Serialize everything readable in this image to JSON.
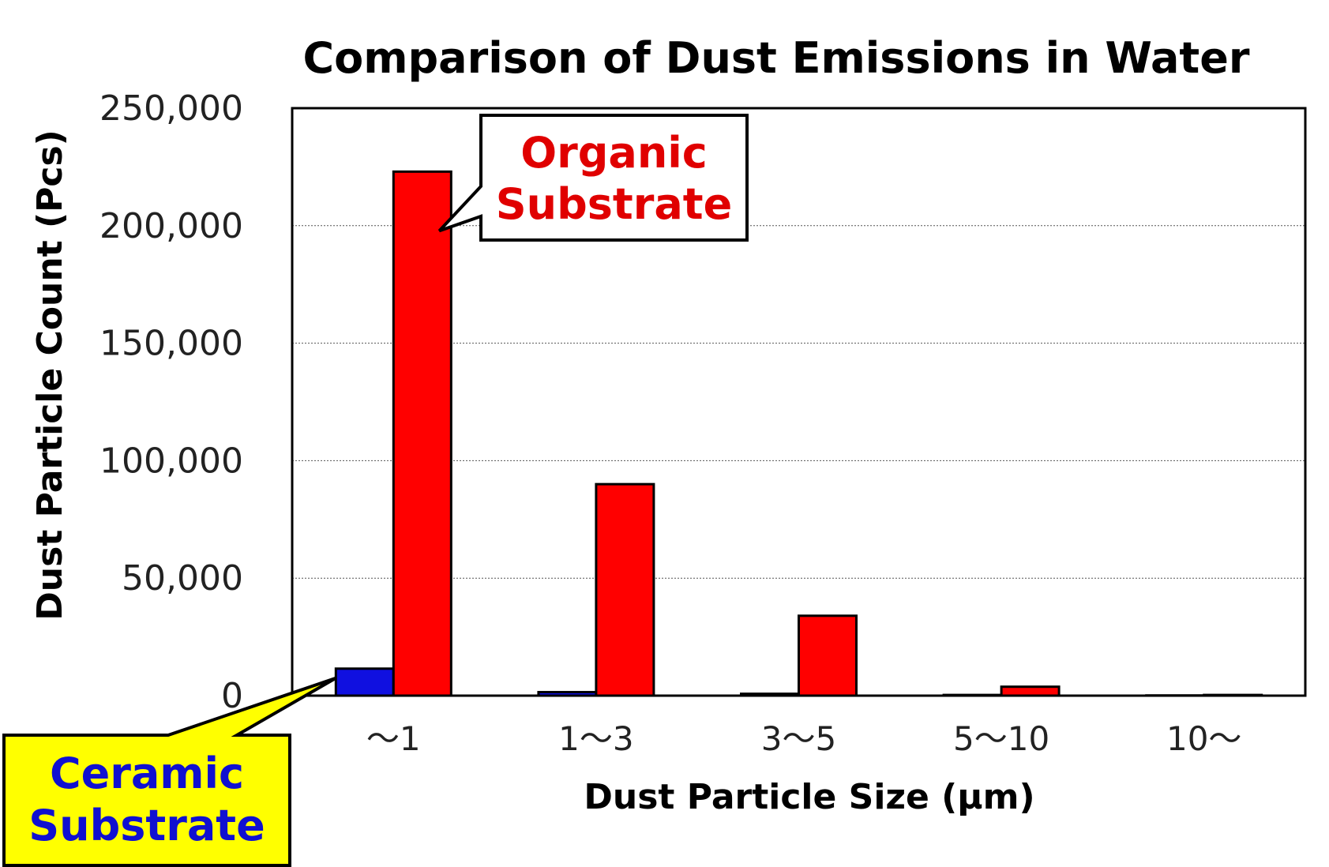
{
  "chart_data": {
    "type": "bar",
    "title": "Comparison of Dust Emissions in Water",
    "xlabel": "Dust Particle Size (μm)",
    "ylabel": "Dust Particle Count (Pcs)",
    "categories": [
      "～1",
      "1～3",
      "3～5",
      "5～10",
      "10～"
    ],
    "series": [
      {
        "name": "Ceramic Substrate",
        "color": "#1010e0",
        "values": [
          11500,
          1500,
          800,
          300,
          100
        ]
      },
      {
        "name": "Organic Substrate",
        "color": "#ff0000",
        "values": [
          223000,
          90000,
          34000,
          3800,
          300
        ]
      }
    ],
    "ylim": [
      0,
      250000
    ],
    "yticks": [
      0,
      50000,
      100000,
      150000,
      200000,
      250000
    ],
    "ytick_labels": [
      "0",
      "50,000",
      "100,000",
      "150,000",
      "200,000",
      "250,000"
    ],
    "grid": true,
    "legend": "callouts"
  },
  "callouts": {
    "organic": {
      "lines": [
        "Organic",
        "Substrate"
      ],
      "text_color": "#e00000",
      "box_color": "#ffffff"
    },
    "ceramic": {
      "lines": [
        "Ceramic",
        "Substrate"
      ],
      "text_color": "#1010d0",
      "box_color": "#ffff00"
    }
  }
}
